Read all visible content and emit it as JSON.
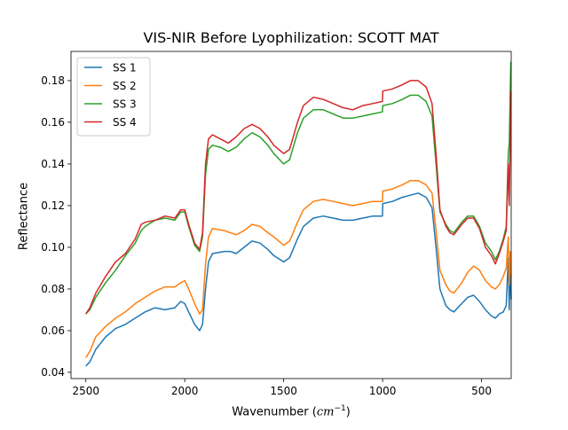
{
  "chart_data": {
    "type": "line",
    "title": "VIS-NIR Before Lyophilization: SCOTT MAT",
    "xlabel_prefix": "Wavenumber (",
    "xlabel_unit": "cm",
    "xlabel_exp": "−1",
    "xlabel_suffix": ")",
    "ylabel": "Reflectance",
    "xlim": [
      2575,
      350
    ],
    "ylim": [
      0.037,
      0.194
    ],
    "xticks": [
      2500,
      2000,
      1500,
      1000,
      500
    ],
    "xtick_labels": [
      "2500",
      "2000",
      "1500",
      "1000",
      "500"
    ],
    "yticks": [
      0.04,
      0.06,
      0.08,
      0.1,
      0.12,
      0.14,
      0.16,
      0.18
    ],
    "ytick_labels": [
      "0.04",
      "0.06",
      "0.08",
      "0.10",
      "0.12",
      "0.14",
      "0.16",
      "0.18"
    ],
    "legend_position": "top-left",
    "series": [
      {
        "name": "SS 1",
        "color": "#1f77b4",
        "points": [
          [
            2500,
            0.043
          ],
          [
            2480,
            0.045
          ],
          [
            2450,
            0.051
          ],
          [
            2400,
            0.057
          ],
          [
            2350,
            0.061
          ],
          [
            2300,
            0.063
          ],
          [
            2250,
            0.066
          ],
          [
            2200,
            0.069
          ],
          [
            2150,
            0.071
          ],
          [
            2100,
            0.07
          ],
          [
            2050,
            0.071
          ],
          [
            2020,
            0.074
          ],
          [
            2000,
            0.073
          ],
          [
            1980,
            0.069
          ],
          [
            1950,
            0.063
          ],
          [
            1925,
            0.06
          ],
          [
            1910,
            0.063
          ],
          [
            1895,
            0.08
          ],
          [
            1880,
            0.093
          ],
          [
            1860,
            0.097
          ],
          [
            1800,
            0.098
          ],
          [
            1770,
            0.098
          ],
          [
            1740,
            0.097
          ],
          [
            1700,
            0.1
          ],
          [
            1660,
            0.103
          ],
          [
            1620,
            0.102
          ],
          [
            1580,
            0.099
          ],
          [
            1550,
            0.096
          ],
          [
            1500,
            0.093
          ],
          [
            1470,
            0.095
          ],
          [
            1430,
            0.104
          ],
          [
            1400,
            0.11
          ],
          [
            1350,
            0.114
          ],
          [
            1300,
            0.115
          ],
          [
            1250,
            0.114
          ],
          [
            1200,
            0.113
          ],
          [
            1150,
            0.113
          ],
          [
            1100,
            0.114
          ],
          [
            1050,
            0.115
          ],
          [
            1001,
            0.115
          ],
          [
            999,
            0.121
          ],
          [
            950,
            0.122
          ],
          [
            900,
            0.124
          ],
          [
            860,
            0.125
          ],
          [
            820,
            0.126
          ],
          [
            780,
            0.124
          ],
          [
            750,
            0.119
          ],
          [
            730,
            0.1
          ],
          [
            710,
            0.08
          ],
          [
            680,
            0.072
          ],
          [
            660,
            0.07
          ],
          [
            640,
            0.069
          ],
          [
            600,
            0.073
          ],
          [
            570,
            0.076
          ],
          [
            540,
            0.077
          ],
          [
            510,
            0.074
          ],
          [
            480,
            0.07
          ],
          [
            450,
            0.067
          ],
          [
            430,
            0.066
          ],
          [
            410,
            0.068
          ],
          [
            390,
            0.069
          ],
          [
            375,
            0.072
          ],
          [
            365,
            0.095
          ],
          [
            360,
            0.07
          ],
          [
            355,
            0.09
          ],
          [
            350,
            0.075
          ]
        ]
      },
      {
        "name": "SS 2",
        "color": "#ff7f0e",
        "points": [
          [
            2500,
            0.047
          ],
          [
            2480,
            0.05
          ],
          [
            2450,
            0.057
          ],
          [
            2400,
            0.062
          ],
          [
            2350,
            0.066
          ],
          [
            2300,
            0.069
          ],
          [
            2250,
            0.073
          ],
          [
            2200,
            0.076
          ],
          [
            2150,
            0.079
          ],
          [
            2100,
            0.081
          ],
          [
            2050,
            0.081
          ],
          [
            2020,
            0.083
          ],
          [
            2000,
            0.084
          ],
          [
            1980,
            0.08
          ],
          [
            1950,
            0.073
          ],
          [
            1925,
            0.068
          ],
          [
            1910,
            0.07
          ],
          [
            1895,
            0.092
          ],
          [
            1880,
            0.105
          ],
          [
            1860,
            0.109
          ],
          [
            1800,
            0.108
          ],
          [
            1770,
            0.107
          ],
          [
            1740,
            0.106
          ],
          [
            1700,
            0.108
          ],
          [
            1660,
            0.111
          ],
          [
            1620,
            0.11
          ],
          [
            1580,
            0.107
          ],
          [
            1550,
            0.105
          ],
          [
            1500,
            0.101
          ],
          [
            1470,
            0.103
          ],
          [
            1430,
            0.112
          ],
          [
            1400,
            0.118
          ],
          [
            1350,
            0.122
          ],
          [
            1300,
            0.123
          ],
          [
            1250,
            0.122
          ],
          [
            1200,
            0.121
          ],
          [
            1150,
            0.12
          ],
          [
            1100,
            0.121
          ],
          [
            1050,
            0.122
          ],
          [
            1001,
            0.122
          ],
          [
            999,
            0.127
          ],
          [
            950,
            0.128
          ],
          [
            900,
            0.13
          ],
          [
            860,
            0.132
          ],
          [
            820,
            0.132
          ],
          [
            780,
            0.13
          ],
          [
            750,
            0.126
          ],
          [
            730,
            0.108
          ],
          [
            710,
            0.089
          ],
          [
            680,
            0.082
          ],
          [
            660,
            0.079
          ],
          [
            640,
            0.078
          ],
          [
            600,
            0.083
          ],
          [
            570,
            0.088
          ],
          [
            540,
            0.091
          ],
          [
            510,
            0.089
          ],
          [
            480,
            0.084
          ],
          [
            450,
            0.081
          ],
          [
            430,
            0.08
          ],
          [
            410,
            0.082
          ],
          [
            390,
            0.086
          ],
          [
            375,
            0.09
          ],
          [
            365,
            0.105
          ],
          [
            360,
            0.082
          ],
          [
            355,
            0.098
          ],
          [
            350,
            0.085
          ]
        ]
      },
      {
        "name": "SS 3",
        "color": "#2ca02c",
        "points": [
          [
            2500,
            0.068
          ],
          [
            2480,
            0.07
          ],
          [
            2450,
            0.076
          ],
          [
            2400,
            0.083
          ],
          [
            2350,
            0.089
          ],
          [
            2300,
            0.096
          ],
          [
            2250,
            0.102
          ],
          [
            2220,
            0.108
          ],
          [
            2200,
            0.11
          ],
          [
            2150,
            0.113
          ],
          [
            2100,
            0.114
          ],
          [
            2050,
            0.113
          ],
          [
            2020,
            0.117
          ],
          [
            2000,
            0.117
          ],
          [
            1980,
            0.11
          ],
          [
            1950,
            0.101
          ],
          [
            1925,
            0.098
          ],
          [
            1910,
            0.105
          ],
          [
            1895,
            0.135
          ],
          [
            1880,
            0.147
          ],
          [
            1860,
            0.149
          ],
          [
            1820,
            0.148
          ],
          [
            1780,
            0.146
          ],
          [
            1740,
            0.148
          ],
          [
            1700,
            0.152
          ],
          [
            1660,
            0.155
          ],
          [
            1620,
            0.153
          ],
          [
            1580,
            0.149
          ],
          [
            1550,
            0.145
          ],
          [
            1500,
            0.14
          ],
          [
            1470,
            0.142
          ],
          [
            1430,
            0.155
          ],
          [
            1400,
            0.162
          ],
          [
            1350,
            0.166
          ],
          [
            1300,
            0.166
          ],
          [
            1250,
            0.164
          ],
          [
            1200,
            0.162
          ],
          [
            1150,
            0.162
          ],
          [
            1100,
            0.163
          ],
          [
            1050,
            0.164
          ],
          [
            1001,
            0.165
          ],
          [
            999,
            0.168
          ],
          [
            950,
            0.169
          ],
          [
            900,
            0.171
          ],
          [
            860,
            0.173
          ],
          [
            820,
            0.173
          ],
          [
            780,
            0.17
          ],
          [
            750,
            0.163
          ],
          [
            730,
            0.14
          ],
          [
            710,
            0.117
          ],
          [
            680,
            0.111
          ],
          [
            660,
            0.108
          ],
          [
            640,
            0.107
          ],
          [
            600,
            0.112
          ],
          [
            570,
            0.115
          ],
          [
            540,
            0.115
          ],
          [
            510,
            0.11
          ],
          [
            480,
            0.102
          ],
          [
            450,
            0.098
          ],
          [
            430,
            0.094
          ],
          [
            410,
            0.098
          ],
          [
            390,
            0.104
          ],
          [
            375,
            0.11
          ],
          [
            365,
            0.145
          ],
          [
            360,
            0.15
          ],
          [
            355,
            0.175
          ],
          [
            352,
            0.189
          ]
        ]
      },
      {
        "name": "SS 4",
        "color": "#d62728",
        "points": [
          [
            2500,
            0.068
          ],
          [
            2480,
            0.071
          ],
          [
            2450,
            0.078
          ],
          [
            2400,
            0.086
          ],
          [
            2350,
            0.093
          ],
          [
            2300,
            0.097
          ],
          [
            2250,
            0.104
          ],
          [
            2220,
            0.111
          ],
          [
            2200,
            0.112
          ],
          [
            2150,
            0.113
          ],
          [
            2100,
            0.115
          ],
          [
            2050,
            0.114
          ],
          [
            2020,
            0.118
          ],
          [
            2000,
            0.118
          ],
          [
            1980,
            0.111
          ],
          [
            1950,
            0.102
          ],
          [
            1925,
            0.099
          ],
          [
            1910,
            0.107
          ],
          [
            1895,
            0.14
          ],
          [
            1880,
            0.152
          ],
          [
            1860,
            0.154
          ],
          [
            1820,
            0.152
          ],
          [
            1780,
            0.15
          ],
          [
            1740,
            0.153
          ],
          [
            1700,
            0.157
          ],
          [
            1660,
            0.159
          ],
          [
            1620,
            0.157
          ],
          [
            1580,
            0.153
          ],
          [
            1550,
            0.149
          ],
          [
            1500,
            0.145
          ],
          [
            1470,
            0.147
          ],
          [
            1430,
            0.16
          ],
          [
            1400,
            0.168
          ],
          [
            1350,
            0.172
          ],
          [
            1300,
            0.171
          ],
          [
            1250,
            0.169
          ],
          [
            1200,
            0.167
          ],
          [
            1150,
            0.166
          ],
          [
            1100,
            0.168
          ],
          [
            1050,
            0.169
          ],
          [
            1001,
            0.17
          ],
          [
            999,
            0.175
          ],
          [
            950,
            0.176
          ],
          [
            900,
            0.178
          ],
          [
            860,
            0.18
          ],
          [
            820,
            0.18
          ],
          [
            780,
            0.177
          ],
          [
            750,
            0.169
          ],
          [
            730,
            0.145
          ],
          [
            710,
            0.118
          ],
          [
            680,
            0.11
          ],
          [
            660,
            0.107
          ],
          [
            640,
            0.106
          ],
          [
            600,
            0.111
          ],
          [
            570,
            0.114
          ],
          [
            540,
            0.114
          ],
          [
            510,
            0.109
          ],
          [
            480,
            0.1
          ],
          [
            450,
            0.096
          ],
          [
            430,
            0.092
          ],
          [
            410,
            0.097
          ],
          [
            390,
            0.103
          ],
          [
            375,
            0.108
          ],
          [
            365,
            0.14
          ],
          [
            360,
            0.12
          ],
          [
            355,
            0.15
          ],
          [
            352,
            0.175
          ]
        ]
      }
    ]
  }
}
